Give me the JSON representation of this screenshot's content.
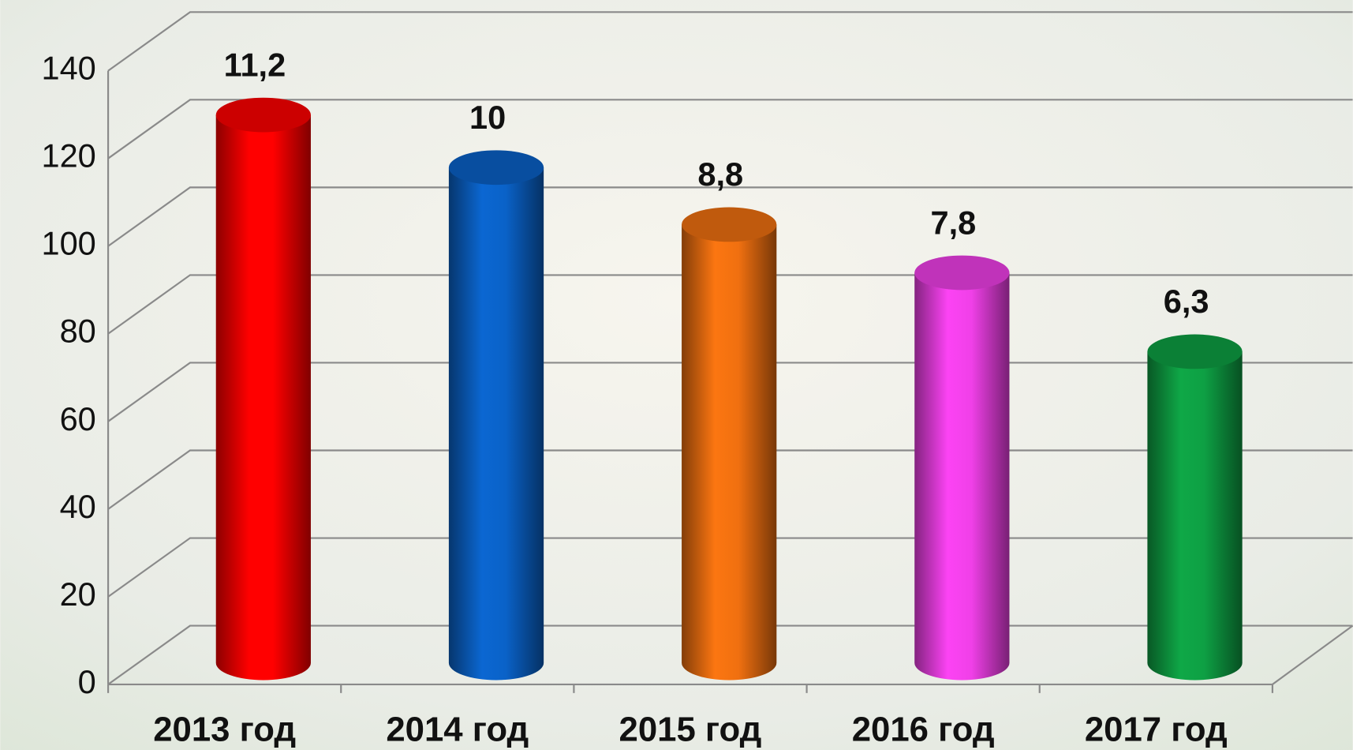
{
  "chart_data": {
    "type": "bar3d",
    "categories": [
      "2013 год",
      "2014 год",
      "2015 год",
      "2016 год",
      "2017 год"
    ],
    "values": [
      125,
      113,
      100,
      89,
      71
    ],
    "colors": [
      "#ff0000",
      "#0a62c8",
      "#f07010",
      "#f040e8",
      "#0ea044"
    ],
    "annotations": [
      "11,2",
      "10",
      "8,8",
      "7,8",
      "6,3"
    ],
    "ylim": [
      0,
      140
    ],
    "yticks": [
      0,
      20,
      40,
      60,
      80,
      100,
      120,
      140
    ],
    "grid": true
  }
}
